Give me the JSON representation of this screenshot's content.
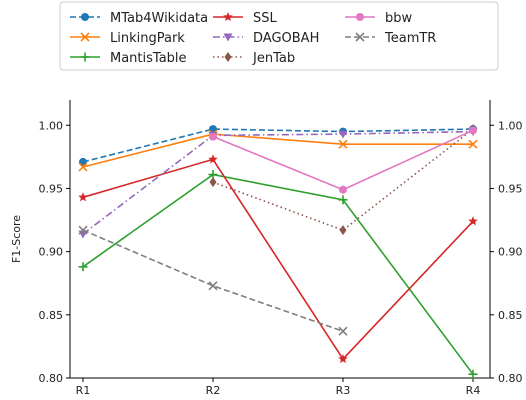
{
  "chart_data": {
    "type": "line",
    "categories": [
      "R1",
      "R2",
      "R3",
      "R4"
    ],
    "ylabel": "F1-Score",
    "ylim": [
      0.8,
      1.02
    ],
    "yticks": [
      "0.80",
      "0.85",
      "0.90",
      "0.95",
      "1.00"
    ],
    "right_yticks": [
      "0.80",
      "0.85",
      "0.90",
      "0.95",
      "1.00"
    ],
    "grid": false,
    "legend_position": "top",
    "series": [
      {
        "name": "MTab4Wikidata",
        "values": [
          0.971,
          0.997,
          0.995,
          0.997
        ],
        "color": "#1f77b4",
        "dash": "dashed",
        "marker": "circle"
      },
      {
        "name": "LinkingPark",
        "values": [
          0.967,
          0.993,
          0.985,
          0.985
        ],
        "color": "#ff7f0e",
        "dash": "solid",
        "marker": "x"
      },
      {
        "name": "MantisTable",
        "values": [
          0.888,
          0.961,
          0.941,
          0.803
        ],
        "color": "#2ca02c",
        "dash": "solid",
        "marker": "plus"
      },
      {
        "name": "SSL",
        "values": [
          0.943,
          0.973,
          0.815,
          0.924
        ],
        "color": "#d62728",
        "dash": "solid",
        "marker": "star"
      },
      {
        "name": "DAGOBAH",
        "values": [
          0.914,
          0.992,
          0.993,
          0.995
        ],
        "color": "#9467bd",
        "dash": "dashdot",
        "marker": "triangle-down"
      },
      {
        "name": "JenTab",
        "values": [
          null,
          0.955,
          0.917,
          0.997
        ],
        "color": "#8c564b",
        "dash": "dotted",
        "marker": "diamond"
      },
      {
        "name": "bbw",
        "values": [
          null,
          0.991,
          0.949,
          0.996
        ],
        "color": "#e377c2",
        "dash": "solid",
        "marker": "circle"
      },
      {
        "name": "TeamTR",
        "values": [
          0.917,
          0.873,
          0.837,
          null
        ],
        "color": "#7f7f7f",
        "dash": "dashed",
        "marker": "x"
      }
    ]
  }
}
